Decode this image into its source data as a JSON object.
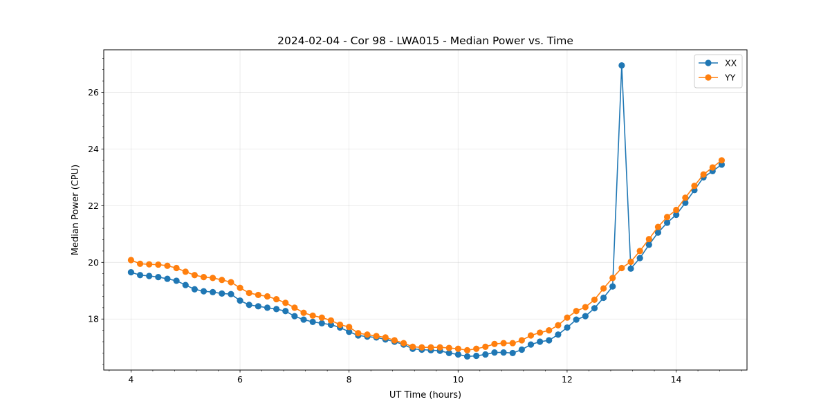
{
  "chart_data": {
    "type": "line",
    "title": "2024-02-04 - Cor 98 - LWA015 - Median Power vs. Time",
    "xlabel": "UT Time (hours)",
    "ylabel": "Median Power (CPU)",
    "xlim": [
      3.5,
      15.3
    ],
    "ylim": [
      16.2,
      27.5
    ],
    "xticks": [
      4,
      6,
      8,
      10,
      12,
      14
    ],
    "xtick_labels": [
      "4",
      "6",
      "8",
      "10",
      "12",
      "14"
    ],
    "yticks": [
      18,
      20,
      22,
      24,
      26
    ],
    "ytick_labels": [
      "18",
      "20",
      "22",
      "24",
      "26"
    ],
    "grid": true,
    "legend_position": "top-right",
    "x_start": 4.0,
    "x_step": 0.1667,
    "series": [
      {
        "name": "XX",
        "color": "#1f77b4",
        "values": [
          19.65,
          19.55,
          19.52,
          19.48,
          19.42,
          19.35,
          19.2,
          19.05,
          18.98,
          18.95,
          18.9,
          18.88,
          18.65,
          18.5,
          18.45,
          18.4,
          18.35,
          18.28,
          18.1,
          17.98,
          17.9,
          17.85,
          17.8,
          17.7,
          17.55,
          17.42,
          17.38,
          17.35,
          17.28,
          17.2,
          17.1,
          16.95,
          16.92,
          16.9,
          16.88,
          16.8,
          16.75,
          16.68,
          16.7,
          16.75,
          16.82,
          16.82,
          16.8,
          16.92,
          17.1,
          17.2,
          17.25,
          17.45,
          17.7,
          17.98,
          18.1,
          18.38,
          18.75,
          19.15,
          26.95,
          19.78,
          20.15,
          20.62,
          21.05,
          21.4,
          21.68,
          22.1,
          22.55,
          23.0,
          23.22,
          23.45
        ]
      },
      {
        "name": "YY",
        "color": "#ff7f0e",
        "values": [
          20.08,
          19.95,
          19.93,
          19.92,
          19.88,
          19.8,
          19.67,
          19.55,
          19.48,
          19.45,
          19.38,
          19.3,
          19.1,
          18.92,
          18.85,
          18.8,
          18.7,
          18.57,
          18.4,
          18.22,
          18.12,
          18.05,
          17.95,
          17.8,
          17.72,
          17.5,
          17.45,
          17.4,
          17.35,
          17.25,
          17.15,
          17.02,
          17.0,
          17.0,
          17.0,
          16.98,
          16.95,
          16.9,
          16.95,
          17.02,
          17.12,
          17.15,
          17.15,
          17.25,
          17.42,
          17.52,
          17.6,
          17.78,
          18.05,
          18.28,
          18.42,
          18.68,
          19.08,
          19.45,
          19.8,
          20.02,
          20.4,
          20.82,
          21.25,
          21.6,
          21.85,
          22.28,
          22.7,
          23.1,
          23.35,
          23.6
        ]
      }
    ]
  }
}
